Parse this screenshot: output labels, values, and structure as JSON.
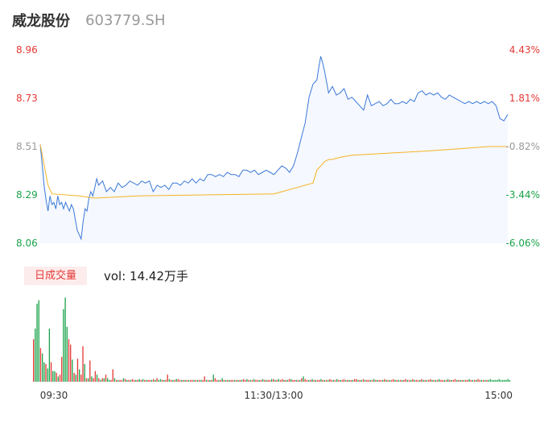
{
  "header": {
    "name": "威龙股份",
    "code": "603779.SH"
  },
  "volume_panel": {
    "tab_label": "日成交量",
    "summary": "vol: 14.42万手"
  },
  "colors": {
    "up": "#e53935",
    "down": "#1aa34a",
    "neutral": "#999999",
    "price_line": "#3a78d8",
    "avg_line": "#f5b324",
    "price_fill": "#f5f8fe"
  },
  "chart_data": [
    {
      "type": "line",
      "title": "",
      "y_ticks_left": [
        "8.96",
        "8.73",
        "8.51",
        "8.29",
        "8.06"
      ],
      "y_ticks_right": [
        "4.43%",
        "1.81%",
        "-0.82%",
        "-3.44%",
        "-6.06%"
      ],
      "ylim": [
        8.06,
        8.96
      ],
      "prev_close": 8.58,
      "total_minutes": 240,
      "series": [
        {
          "x": [
            0,
            1,
            2,
            3,
            4,
            5,
            6,
            7,
            8,
            9,
            10,
            11,
            12,
            13,
            14,
            15,
            16,
            17,
            18,
            19,
            20,
            21,
            22,
            23,
            24,
            25,
            26,
            27,
            28,
            29,
            30,
            32,
            34,
            36,
            38,
            40,
            42,
            44,
            46,
            48,
            50,
            52,
            54,
            56,
            58,
            60,
            62,
            64,
            66,
            68,
            70,
            72,
            74,
            76,
            78,
            80,
            82,
            84,
            86,
            88,
            90,
            92,
            94,
            96,
            98,
            100,
            102,
            104,
            106,
            108,
            110,
            112,
            114,
            116,
            118,
            120,
            122,
            124,
            126,
            128,
            130,
            132,
            134,
            136,
            138,
            140,
            141,
            142,
            143,
            144,
            145,
            146,
            147,
            148,
            150,
            152,
            154,
            156,
            158,
            160,
            162,
            164,
            166,
            168,
            170,
            172,
            174,
            176,
            178,
            180,
            182,
            184,
            186,
            188,
            190,
            192,
            194,
            196,
            198,
            200,
            202,
            204,
            206,
            208,
            210,
            212,
            214,
            216,
            218,
            220,
            222,
            224,
            226,
            228,
            230,
            232,
            234,
            236,
            238,
            240
          ],
          "values": [
            8.52,
            8.43,
            8.33,
            8.26,
            8.21,
            8.28,
            8.24,
            8.25,
            8.22,
            8.28,
            8.24,
            8.25,
            8.22,
            8.25,
            8.23,
            8.21,
            8.24,
            8.22,
            8.17,
            8.12,
            8.1,
            8.08,
            8.16,
            8.22,
            8.21,
            8.27,
            8.3,
            8.28,
            8.32,
            8.36,
            8.33,
            8.35,
            8.3,
            8.32,
            8.3,
            8.34,
            8.32,
            8.33,
            8.35,
            8.34,
            8.33,
            8.35,
            8.34,
            8.35,
            8.3,
            8.33,
            8.32,
            8.33,
            8.31,
            8.34,
            8.34,
            8.33,
            8.35,
            8.34,
            8.36,
            8.34,
            8.36,
            8.35,
            8.38,
            8.38,
            8.37,
            8.38,
            8.37,
            8.39,
            8.38,
            8.38,
            8.37,
            8.4,
            8.4,
            8.39,
            8.4,
            8.38,
            8.39,
            8.4,
            8.39,
            8.38,
            8.4,
            8.42,
            8.41,
            8.39,
            8.42,
            8.48,
            8.55,
            8.62,
            8.74,
            8.8,
            8.81,
            8.82,
            8.88,
            8.93,
            8.9,
            8.86,
            8.81,
            8.76,
            8.79,
            8.75,
            8.76,
            8.78,
            8.73,
            8.74,
            8.72,
            8.7,
            8.68,
            8.75,
            8.7,
            8.71,
            8.72,
            8.7,
            8.71,
            8.73,
            8.71,
            8.71,
            8.72,
            8.71,
            8.73,
            8.72,
            8.76,
            8.77,
            8.75,
            8.76,
            8.75,
            8.76,
            8.74,
            8.73,
            8.75,
            8.74,
            8.73,
            8.72,
            8.71,
            8.72,
            8.71,
            8.72,
            8.71,
            8.72,
            8.71,
            8.72,
            8.7,
            8.64,
            8.63,
            8.66
          ]
        },
        {
          "x": [
            0,
            4,
            6,
            20,
            28,
            50,
            120,
            140,
            142,
            146,
            148,
            150,
            154,
            160,
            180,
            200,
            215,
            230,
            240
          ],
          "values": [
            8.52,
            8.33,
            8.29,
            8.28,
            8.27,
            8.28,
            8.29,
            8.34,
            8.4,
            8.44,
            8.45,
            8.45,
            8.46,
            8.47,
            8.48,
            8.49,
            8.5,
            8.51,
            8.51
          ]
        }
      ]
    },
    {
      "type": "bar",
      "title": "",
      "x_ticks": [
        "09:30",
        "11:30/13:00",
        "15:00"
      ],
      "ymax": 100,
      "values": [
        48,
        60,
        88,
        92,
        38,
        32,
        22,
        20,
        15,
        60,
        22,
        12,
        12,
        10,
        6,
        8,
        28,
        82,
        95,
        62,
        48,
        42,
        25,
        10,
        8,
        26,
        14,
        8,
        40,
        20,
        4,
        4,
        24,
        6,
        4,
        12,
        8,
        4,
        2,
        4,
        4,
        8,
        4,
        2,
        2,
        14,
        4,
        2,
        2,
        2,
        2,
        4,
        3,
        2,
        2,
        2,
        3,
        2,
        2,
        2,
        3,
        2,
        3,
        2,
        2,
        2,
        2,
        2,
        3,
        2,
        4,
        2,
        3,
        2,
        2,
        2,
        8,
        3,
        2,
        2,
        2,
        3,
        3,
        2,
        2,
        2,
        2,
        2,
        2,
        2,
        2,
        2,
        2,
        2,
        2,
        2,
        2,
        6,
        2,
        2,
        2,
        2,
        8,
        4,
        2,
        2,
        2,
        4,
        2,
        2,
        2,
        2,
        2,
        2,
        2,
        2,
        2,
        2,
        2,
        3,
        2,
        3,
        2,
        2,
        2,
        3,
        2,
        2,
        2,
        2,
        3,
        2,
        2,
        2,
        2,
        3,
        3,
        2,
        2,
        3,
        2,
        3,
        2,
        2,
        2,
        3,
        3,
        2,
        2,
        2,
        2,
        2,
        4,
        6,
        3,
        2,
        2,
        2,
        3,
        2,
        2,
        2,
        2,
        3,
        2,
        2,
        2,
        2,
        3,
        2,
        2,
        2,
        3,
        2,
        2,
        2,
        3,
        2,
        2,
        2,
        2,
        2,
        3,
        3,
        2,
        2,
        2,
        3,
        2,
        2,
        2,
        2,
        2,
        3,
        2,
        2,
        2,
        2,
        2,
        3,
        2,
        2,
        2,
        2,
        3,
        2,
        2,
        2,
        2,
        2,
        2,
        3,
        2,
        2,
        2,
        3,
        2,
        2,
        2,
        2,
        3,
        2,
        2,
        2,
        2,
        3,
        2,
        2,
        2,
        2,
        3,
        2,
        2,
        2,
        2,
        3,
        2,
        2,
        2,
        3,
        2,
        2,
        2,
        2,
        2,
        2,
        2,
        3,
        2,
        2,
        2,
        2,
        3,
        2,
        2,
        2,
        2,
        2,
        2,
        3,
        2,
        2,
        2,
        2,
        3,
        2,
        2,
        2,
        2,
        3,
        2
      ],
      "up": [
        true,
        false,
        false,
        false,
        true,
        false,
        false,
        true,
        false,
        false,
        true,
        false,
        false,
        true,
        false,
        true,
        true,
        false,
        false,
        false,
        true,
        true,
        false,
        true,
        false,
        true,
        false,
        true,
        true,
        false,
        true,
        false,
        true,
        false,
        true,
        true,
        false,
        true,
        false,
        true,
        false,
        true,
        false,
        false,
        true,
        true,
        false,
        true,
        false,
        true,
        true,
        false,
        true,
        false,
        true,
        false,
        true,
        true,
        false,
        true,
        false,
        true,
        false,
        true,
        false,
        true,
        true,
        false,
        true,
        false,
        true,
        false,
        false,
        true,
        false,
        true,
        true,
        false,
        true,
        false,
        true,
        false,
        true,
        true,
        false,
        true,
        false,
        true,
        false,
        true,
        true,
        false,
        true,
        false,
        true,
        false,
        true,
        true,
        false,
        true,
        false,
        true,
        false,
        true,
        true,
        false,
        true,
        false,
        true,
        false,
        true,
        false,
        true,
        true,
        false,
        true,
        false,
        true,
        false,
        true,
        true,
        false,
        true,
        false,
        true,
        false,
        true,
        true,
        false,
        true,
        false,
        true,
        false,
        true,
        true,
        false,
        true,
        false,
        true,
        false,
        true,
        true,
        false,
        true,
        false,
        true,
        false,
        true,
        true,
        false,
        true,
        false,
        true,
        false,
        true,
        true,
        false,
        true,
        false,
        true,
        false,
        true,
        true,
        false,
        true,
        false,
        true,
        false,
        true,
        true,
        false,
        true,
        false,
        true,
        false,
        true,
        true,
        false,
        true,
        false,
        true,
        false,
        true,
        true,
        false,
        true,
        false,
        true,
        false,
        true,
        true,
        false,
        true,
        false,
        true,
        false,
        true,
        true,
        false,
        true,
        false,
        true,
        false,
        true,
        true,
        false,
        true,
        false,
        true,
        false,
        true,
        true,
        false,
        true,
        false,
        true,
        false,
        true,
        true,
        false,
        true,
        false,
        true,
        false,
        true,
        true,
        false,
        true,
        false,
        true,
        false,
        true,
        true,
        false,
        true,
        false,
        true,
        false,
        true,
        true,
        false,
        true,
        false,
        true,
        false,
        true,
        true,
        false,
        true,
        false,
        true,
        false,
        true,
        true,
        false,
        true,
        false,
        true
      ]
    }
  ]
}
